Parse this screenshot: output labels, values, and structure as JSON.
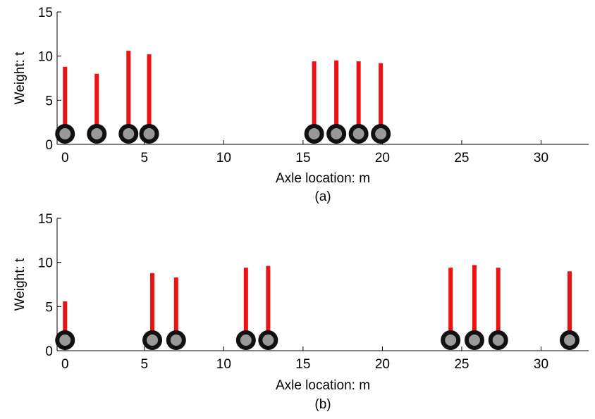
{
  "chart_data": [
    {
      "type": "bar",
      "caption": "(a)",
      "xlabel": "Axle location: m",
      "ylabel": "Weight: t",
      "xlim": [
        -0.5,
        33
      ],
      "ylim": [
        0,
        15
      ],
      "xticks": [
        0,
        5,
        10,
        15,
        20,
        25,
        30
      ],
      "yticks": [
        0,
        5,
        10,
        15
      ],
      "bar_color": "#ee1111",
      "x": [
        0,
        2,
        4,
        5.3,
        15.7,
        17.1,
        18.5,
        19.9
      ],
      "values": [
        8.8,
        8.0,
        10.6,
        10.2,
        9.4,
        9.5,
        9.4,
        9.2
      ]
    },
    {
      "type": "bar",
      "caption": "(b)",
      "xlabel": "Axle location: m",
      "ylabel": "Weight: t",
      "xlim": [
        -0.5,
        33
      ],
      "ylim": [
        0,
        15
      ],
      "xticks": [
        0,
        5,
        10,
        15,
        20,
        25,
        30
      ],
      "yticks": [
        0,
        5,
        10,
        15
      ],
      "bar_color": "#ee1111",
      "x": [
        0,
        5.5,
        7.0,
        11.4,
        12.8,
        24.3,
        25.8,
        27.3,
        31.8
      ],
      "values": [
        5.6,
        8.8,
        8.3,
        9.4,
        9.6,
        9.4,
        9.7,
        9.4,
        9.0
      ]
    }
  ]
}
